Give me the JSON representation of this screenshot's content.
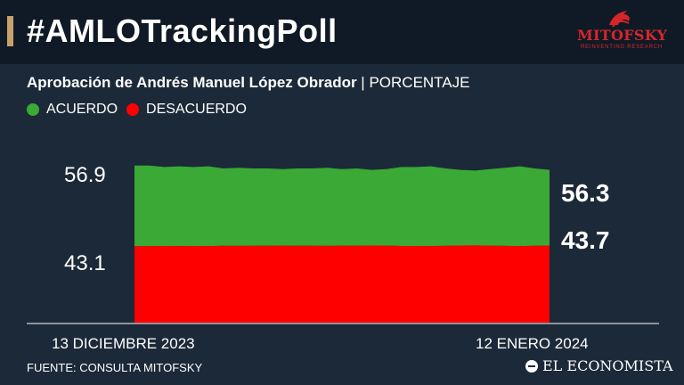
{
  "header": {
    "title": "#AMLOTrackingPoll",
    "logo_text": "MITOFSKY",
    "logo_tagline": "REINVENTING RESEARCH"
  },
  "subtitle": {
    "main": "Aprobación de Andrés Manuel López Obrador",
    "separator": " | ",
    "unit": "PORCENTAJE"
  },
  "legend": [
    {
      "label": "ACUERDO",
      "color": "#3aa935"
    },
    {
      "label": "DESACUERDO",
      "color": "#ff0000"
    }
  ],
  "chart_data": {
    "type": "area",
    "xlabel": "",
    "ylabel": "",
    "x_start_label": "13 DICIEMBRE 2023",
    "x_end_label": "12 ENERO 2024",
    "series": [
      {
        "name": "ACUERDO",
        "color": "#3aa935",
        "values": [
          56.9,
          56.9,
          56.7,
          56.8,
          56.7,
          56.8,
          56.5,
          56.6,
          56.5,
          56.5,
          56.4,
          56.5,
          56.5,
          56.6,
          56.4,
          56.5,
          56.3,
          56.4,
          56.7,
          56.7,
          56.8,
          56.5,
          56.3,
          56.2,
          56.4,
          56.6,
          56.8,
          56.5,
          56.3
        ]
      },
      {
        "name": "DESACUERDO",
        "color": "#ff0000",
        "values": [
          43.1,
          43.1,
          43.3,
          43.2,
          43.3,
          43.2,
          43.5,
          43.4,
          43.5,
          43.5,
          43.6,
          43.5,
          43.5,
          43.4,
          43.6,
          43.5,
          43.7,
          43.6,
          43.3,
          43.3,
          43.2,
          43.5,
          43.7,
          43.8,
          43.6,
          43.4,
          43.2,
          43.5,
          43.7
        ]
      }
    ],
    "axis_labels": {
      "top": "56.9",
      "bottom": "43.1"
    },
    "end_labels": {
      "acuerdo": "56.3",
      "desacuerdo": "43.7"
    }
  },
  "footer": {
    "source": "FUENTE: CONSULTA MITOFSKY",
    "brand": "EL ECONOMISTA"
  }
}
